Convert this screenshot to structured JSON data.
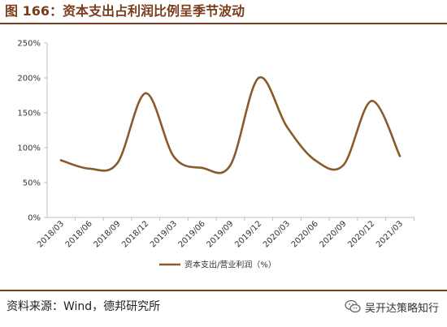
{
  "title": "图 166：资本支出占利润比例呈季节波动",
  "source": "资料来源：Wind，德邦研究所",
  "watermark": {
    "text": "吴开达策略知行",
    "icon": "wechat-icon"
  },
  "colors": {
    "accent": "#7a3d1c",
    "line": "#8a5a2b",
    "axis": "#bfbfbf"
  },
  "chart_data": {
    "type": "line",
    "title": "",
    "xlabel": "",
    "ylabel": "",
    "categories": [
      "2018/03",
      "2018/06",
      "2018/09",
      "2018/12",
      "2019/03",
      "2019/06",
      "2019/09",
      "2019/12",
      "2020/03",
      "2020/06",
      "2020/09",
      "2020/12",
      "2021/03"
    ],
    "series": [
      {
        "name": "资本支出/营业利润（%）",
        "values": [
          82,
          70,
          78,
          178,
          87,
          71,
          75,
          200,
          130,
          82,
          75,
          167,
          88
        ],
        "color": "#8a5a2b"
      }
    ],
    "ylim": [
      0,
      250
    ],
    "yticks": [
      0,
      50,
      100,
      150,
      200,
      250
    ],
    "ytick_labels": [
      "0%",
      "50%",
      "100%",
      "150%",
      "200%",
      "250%"
    ],
    "grid": false,
    "legend": "bottom-center"
  }
}
